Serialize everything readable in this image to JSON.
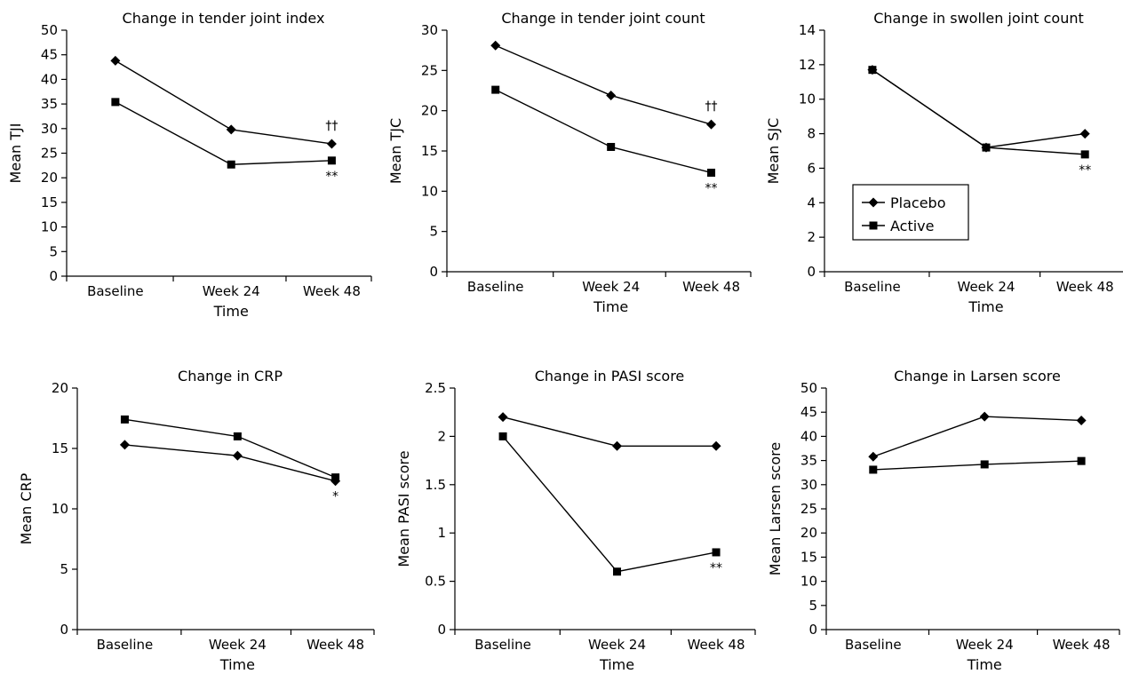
{
  "chart_data": [
    {
      "type": "line",
      "title": "Change in tender joint index",
      "xlabel": "Time",
      "ylabel": "Mean TJI",
      "categories": [
        "Baseline",
        "Week 24",
        "Week 48"
      ],
      "ylim": [
        0,
        50
      ],
      "yticks": [
        0,
        5,
        10,
        15,
        20,
        25,
        30,
        35,
        40,
        45,
        50
      ],
      "series": [
        {
          "name": "Placebo",
          "marker": "diamond",
          "values": [
            43.8,
            29.8,
            26.9
          ]
        },
        {
          "name": "Active",
          "marker": "square",
          "values": [
            35.4,
            22.7,
            23.5
          ]
        }
      ],
      "annotations": [
        {
          "text": "††",
          "category": "Week 48",
          "position": "above"
        },
        {
          "text": "**",
          "category": "Week 48",
          "position": "below"
        }
      ]
    },
    {
      "type": "line",
      "title": "Change in tender joint count",
      "xlabel": "Time",
      "ylabel": "Mean TJC",
      "categories": [
        "Baseline",
        "Week 24",
        "Week 48"
      ],
      "ylim": [
        0,
        30
      ],
      "yticks": [
        0,
        5,
        10,
        15,
        20,
        25,
        30
      ],
      "series": [
        {
          "name": "Placebo",
          "marker": "diamond",
          "values": [
            28.1,
            21.9,
            18.3
          ]
        },
        {
          "name": "Active",
          "marker": "square",
          "values": [
            22.6,
            15.5,
            12.3
          ]
        }
      ],
      "annotations": [
        {
          "text": "††",
          "category": "Week 48",
          "position": "above"
        },
        {
          "text": "**",
          "category": "Week 48",
          "position": "below"
        }
      ]
    },
    {
      "type": "line",
      "title": "Change in swollen joint count",
      "xlabel": "Time",
      "ylabel": "Mean SJC",
      "categories": [
        "Baseline",
        "Week 24",
        "Week 48"
      ],
      "ylim": [
        0,
        14
      ],
      "yticks": [
        0,
        2,
        4,
        6,
        8,
        10,
        12,
        14
      ],
      "legend": {
        "placement": "center-left"
      },
      "series": [
        {
          "name": "Placebo",
          "marker": "diamond",
          "values": [
            11.7,
            7.2,
            8.0
          ]
        },
        {
          "name": "Active",
          "marker": "square",
          "values": [
            11.7,
            7.2,
            6.8
          ]
        }
      ],
      "annotations": [
        {
          "text": "**",
          "category": "Week 48",
          "position": "below"
        }
      ]
    },
    {
      "type": "line",
      "title": "Change in CRP",
      "xlabel": "Time",
      "ylabel": "Mean CRP",
      "categories": [
        "Baseline",
        "Week 24",
        "Week 48"
      ],
      "ylim": [
        0,
        20
      ],
      "yticks": [
        0,
        5,
        10,
        15,
        20
      ],
      "series": [
        {
          "name": "Placebo",
          "marker": "diamond",
          "values": [
            15.3,
            14.4,
            12.3
          ]
        },
        {
          "name": "Active",
          "marker": "square",
          "values": [
            17.4,
            16.0,
            12.6
          ]
        }
      ],
      "annotations": [
        {
          "text": "*",
          "category": "Week 48",
          "position": "below"
        }
      ]
    },
    {
      "type": "line",
      "title": "Change in PASI score",
      "xlabel": "Time",
      "ylabel": "Mean PASI score",
      "categories": [
        "Baseline",
        "Week 24",
        "Week 48"
      ],
      "ylim": [
        0,
        2.5
      ],
      "yticks": [
        0,
        0.5,
        1,
        1.5,
        2,
        2.5
      ],
      "series": [
        {
          "name": "Placebo",
          "marker": "diamond",
          "values": [
            2.2,
            1.9,
            1.9
          ]
        },
        {
          "name": "Active",
          "marker": "square",
          "values": [
            2.0,
            0.6,
            0.8
          ]
        }
      ],
      "annotations": [
        {
          "text": "**",
          "category": "Week 48",
          "position": "below"
        }
      ]
    },
    {
      "type": "line",
      "title": "Change in Larsen score",
      "xlabel": "Time",
      "ylabel": "Mean Larsen score",
      "categories": [
        "Baseline",
        "Week 24",
        "Week 48"
      ],
      "ylim": [
        0,
        50
      ],
      "yticks": [
        0,
        5,
        10,
        15,
        20,
        25,
        30,
        35,
        40,
        45,
        50
      ],
      "series": [
        {
          "name": "Placebo",
          "marker": "diamond",
          "values": [
            35.8,
            44.1,
            43.3
          ]
        },
        {
          "name": "Active",
          "marker": "square",
          "values": [
            33.1,
            34.2,
            34.9
          ]
        }
      ],
      "annotations": []
    }
  ]
}
